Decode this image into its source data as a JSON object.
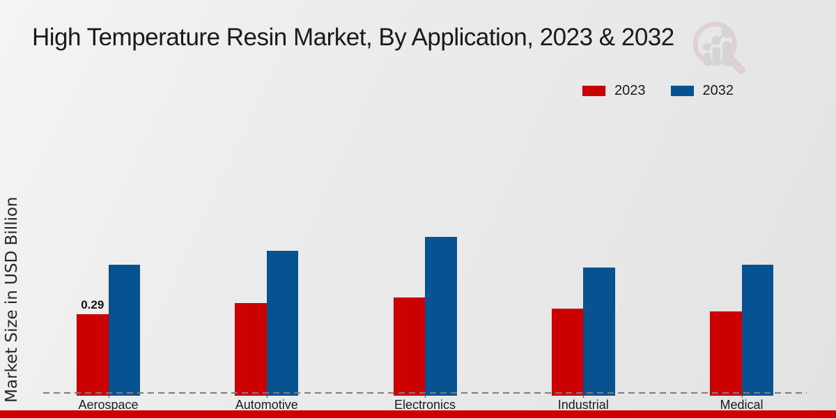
{
  "title": "High Temperature Resin Market, By Application, 2023 & 2032",
  "ylabel": "Market Size in USD Billion",
  "logo_name": "market-research-future-watermark",
  "colors": {
    "series_2023": "#cc0001",
    "series_2032": "#075290",
    "footer_strip": "#cc0001",
    "baseline_dash": "#7d7d7d",
    "text": "#1a1a1a",
    "logo_pink": "#d39aa3",
    "logo_gray": "#c6c6ca"
  },
  "legend": [
    {
      "label": "2023",
      "color": "#cc0001"
    },
    {
      "label": "2032",
      "color": "#075290"
    }
  ],
  "chart_data": {
    "type": "bar",
    "title": "High Temperature Resin Market, By Application, 2023 & 2032",
    "xlabel": "",
    "ylabel": "Market Size in USD Billion",
    "categories": [
      "Aerospace",
      "Automotive",
      "Electronics",
      "Industrial",
      "Medical"
    ],
    "series": [
      {
        "name": "2023",
        "color": "#cc0001",
        "values": [
          0.29,
          0.33,
          0.35,
          0.31,
          0.3
        ]
      },
      {
        "name": "2032",
        "color": "#075290",
        "values": [
          0.47,
          0.52,
          0.57,
          0.46,
          0.47
        ]
      }
    ],
    "annotations": [
      {
        "series": "2023",
        "category": "Aerospace",
        "label": "0.29"
      }
    ],
    "ylim": [
      0,
      0.62
    ],
    "grid": false,
    "y_axis_ticks_visible": false,
    "baseline_style": "dashed",
    "legend_position": "top-right"
  }
}
